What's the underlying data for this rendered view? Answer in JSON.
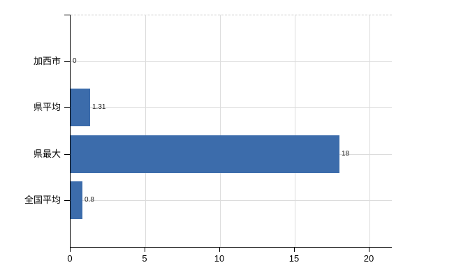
{
  "chart_data": {
    "type": "bar",
    "orientation": "horizontal",
    "title": "",
    "xlabel": "",
    "ylabel": "",
    "categories": [
      "加西市",
      "県平均",
      "県最大",
      "全国平均"
    ],
    "values": [
      0,
      1.31,
      18,
      0.8
    ],
    "data_labels": [
      "0",
      "1.31",
      "18",
      "0.8"
    ],
    "x_ticks": [
      {
        "value": 0,
        "label": "0"
      },
      {
        "value": 5,
        "label": "5"
      },
      {
        "value": 10,
        "label": "10"
      },
      {
        "value": 15,
        "label": "15"
      },
      {
        "value": 20,
        "label": "20"
      }
    ],
    "xlim": [
      0,
      21.5
    ],
    "grid": true,
    "legend": false,
    "colors": {
      "bar": "#3c6cab",
      "gridline": "#dcdcdc",
      "top_border": "#c9c9c9",
      "axis": "#000000",
      "text": "#000000",
      "background": "#ffffff"
    }
  }
}
